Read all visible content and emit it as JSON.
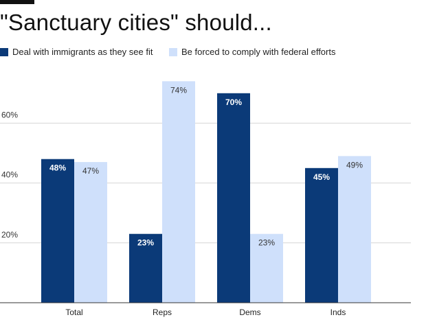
{
  "chart_data": {
    "type": "bar",
    "title": "\"Sanctuary cities\" should...",
    "categories": [
      "Total",
      "Reps",
      "Dems",
      "Inds"
    ],
    "series": [
      {
        "name": "Deal with immigrants as they see fit",
        "color": "#0b3a78",
        "values": [
          48,
          23,
          70,
          45
        ],
        "labels": [
          "48%",
          "23%",
          "70%",
          "45%"
        ]
      },
      {
        "name": "Be forced to comply with federal efforts",
        "color": "#cfe0fb",
        "values": [
          47,
          74,
          23,
          49
        ],
        "labels": [
          "47%",
          "74%",
          "23%",
          "49%"
        ]
      }
    ],
    "yticks": [
      {
        "value": 20,
        "label": "20%"
      },
      {
        "value": 40,
        "label": "40%"
      },
      {
        "value": 60,
        "label": "60%"
      }
    ],
    "ylim": [
      0,
      80
    ],
    "grid": true,
    "legend_position": "top-left"
  }
}
